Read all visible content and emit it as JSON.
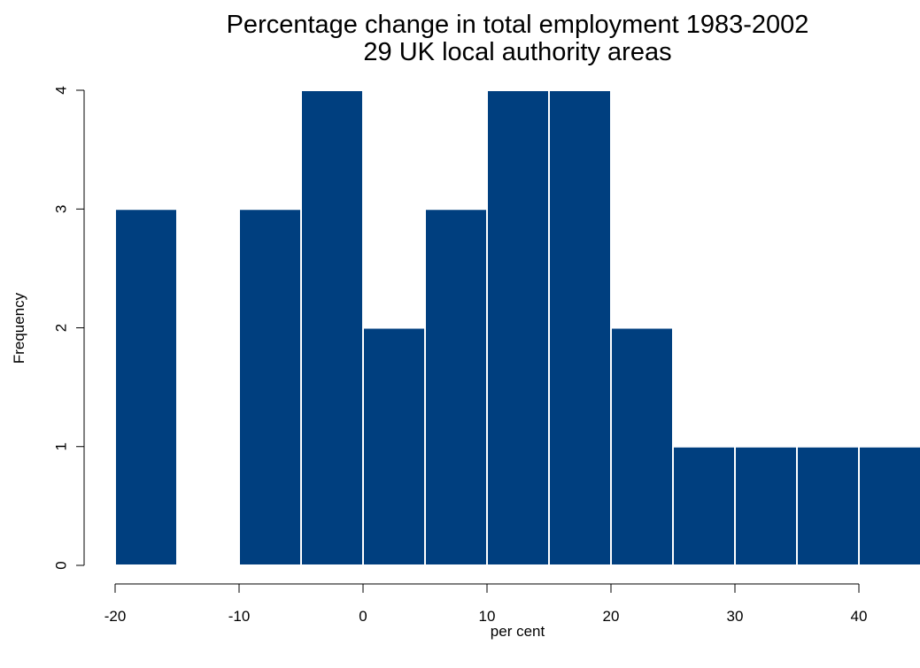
{
  "chart_data": {
    "type": "bar",
    "title": "Percentage change in total employment 1983-2002",
    "subtitle": "29 UK local authority areas",
    "xlabel": "per cent",
    "ylabel": "Frequency",
    "bin_edges": [
      -20,
      -15,
      -10,
      -5,
      0,
      5,
      10,
      15,
      20,
      25,
      30,
      35,
      40,
      45
    ],
    "values": [
      3,
      0,
      3,
      4,
      2,
      3,
      4,
      4,
      2,
      1,
      1,
      1,
      1
    ],
    "xlim": [
      -20,
      45
    ],
    "ylim": [
      0,
      4
    ],
    "x_ticks": [
      -20,
      -10,
      0,
      10,
      20,
      30,
      40
    ],
    "y_ticks": [
      0,
      1,
      2,
      3,
      4
    ],
    "bar_color": "#003f7f",
    "bar_border_color": "#ffffff",
    "grid": false
  }
}
